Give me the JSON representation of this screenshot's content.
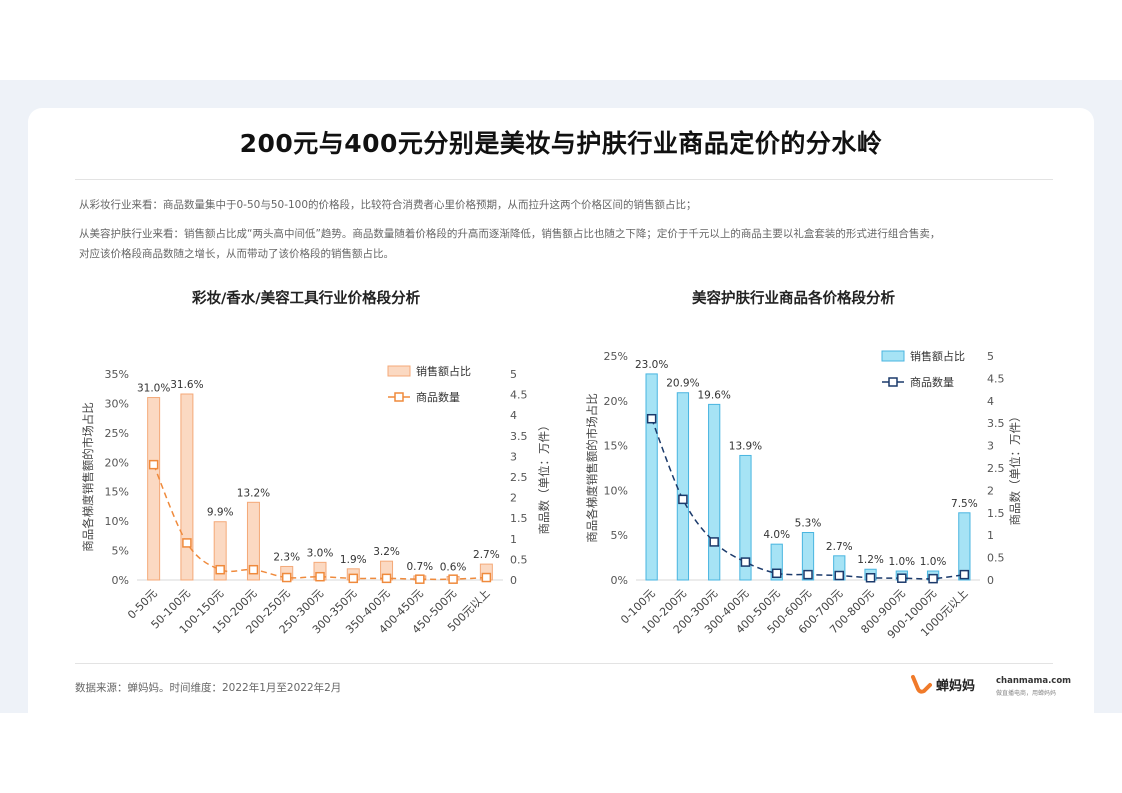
{
  "page": {
    "title": "200元与400元分别是美妆与护肤行业商品定价的分水岭",
    "desc1": "从彩妆行业来看：商品数量集中于0-50与50-100的价格段，比较符合消费者心里价格预期，从而拉升这两个价格区间的销售额占比；",
    "desc2": "从美容护肤行业来看：销售额占比成“两头高中间低”趋势。商品数量随着价格段的升高而逐渐降低，销售额占比也随之下降；定价于千元以上的商品主要以礼盒套装的形式进行组合售卖，",
    "desc3": "对应该价格段商品数随之增长，从而带动了该价格段的销售额占比。",
    "source": "数据来源：蝉妈妈。时间维度：2022年1月至2022年2月",
    "logo_text": "蝉妈妈",
    "logo_url": "chanmama.com",
    "logo_slogan": "做直播电商，用蝉妈妈"
  },
  "chart_data": [
    {
      "type": "bar",
      "title": "彩妆/香水/美容工具行业价格段分析",
      "categories": [
        "0-50元",
        "50-100元",
        "100-150元",
        "150-200元",
        "200-250元",
        "250-300元",
        "300-350元",
        "350-400元",
        "400-450元",
        "450-500元",
        "500元以上"
      ],
      "series": [
        {
          "name": "销售额占比",
          "type": "bar",
          "axis": "left",
          "values": [
            31.0,
            31.6,
            9.9,
            13.2,
            2.3,
            3.0,
            1.9,
            3.2,
            0.7,
            0.6,
            2.7
          ],
          "labels": [
            "31.0%",
            "31.6%",
            "9.9%",
            "13.2%",
            "2.3%",
            "3.0%",
            "1.9%",
            "3.2%",
            "0.7%",
            "0.6%",
            "2.7%"
          ]
        },
        {
          "name": "商品数量",
          "type": "line",
          "axis": "right",
          "values": [
            2.8,
            0.9,
            0.25,
            0.25,
            0.06,
            0.08,
            0.04,
            0.04,
            0.02,
            0.02,
            0.06
          ]
        }
      ],
      "ylabel": "商品各梯度销售额的市场占比",
      "y2label": "商品数（单位：万件）",
      "ylim": [
        0,
        35
      ],
      "yticks": [
        "0%",
        "5%",
        "10%",
        "15%",
        "20%",
        "25%",
        "30%",
        "35%"
      ],
      "y2lim": [
        0,
        5
      ],
      "y2ticks": [
        "0",
        "0.5",
        "1",
        "1.5",
        "2",
        "2.5",
        "3",
        "3.5",
        "4",
        "4.5",
        "5"
      ],
      "bar_fill": "#fbd9c2",
      "bar_stroke": "#f4a978",
      "line_color": "#ef8a3c",
      "legend_position": "top-right"
    },
    {
      "type": "bar",
      "title": "美容护肤行业商品各价格段分析",
      "categories": [
        "0-100元",
        "100-200元",
        "200-300元",
        "300-400元",
        "400-500元",
        "500-600元",
        "600-700元",
        "700-800元",
        "800-900元",
        "900-1000元",
        "1000元以上"
      ],
      "series": [
        {
          "name": "销售额占比",
          "type": "bar",
          "axis": "left",
          "values": [
            23.0,
            20.9,
            19.6,
            13.9,
            4.0,
            5.3,
            2.7,
            1.2,
            1.0,
            1.0,
            7.5
          ],
          "labels": [
            "23.0%",
            "20.9%",
            "19.6%",
            "13.9%",
            "4.0%",
            "5.3%",
            "2.7%",
            "1.2%",
            "1.0%",
            "1.0%",
            "7.5%"
          ]
        },
        {
          "name": "商品数量",
          "type": "line",
          "axis": "right",
          "values": [
            3.6,
            1.8,
            0.85,
            0.4,
            0.15,
            0.12,
            0.1,
            0.05,
            0.04,
            0.03,
            0.12
          ]
        }
      ],
      "ylabel": "商品各梯度销售额的市场占比",
      "y2label": "商品数（单位：万件）",
      "ylim": [
        0,
        25
      ],
      "yticks": [
        "0%",
        "5%",
        "10%",
        "15%",
        "20%",
        "25%"
      ],
      "y2lim": [
        0,
        5
      ],
      "y2ticks": [
        "0",
        "0.5",
        "1",
        "1.5",
        "2",
        "2.5",
        "3",
        "3.5",
        "4",
        "4.5",
        "5"
      ],
      "bar_fill": "#a6e3f5",
      "bar_stroke": "#49b5e0",
      "line_color": "#1b3a6b",
      "legend_position": "top-right"
    }
  ]
}
